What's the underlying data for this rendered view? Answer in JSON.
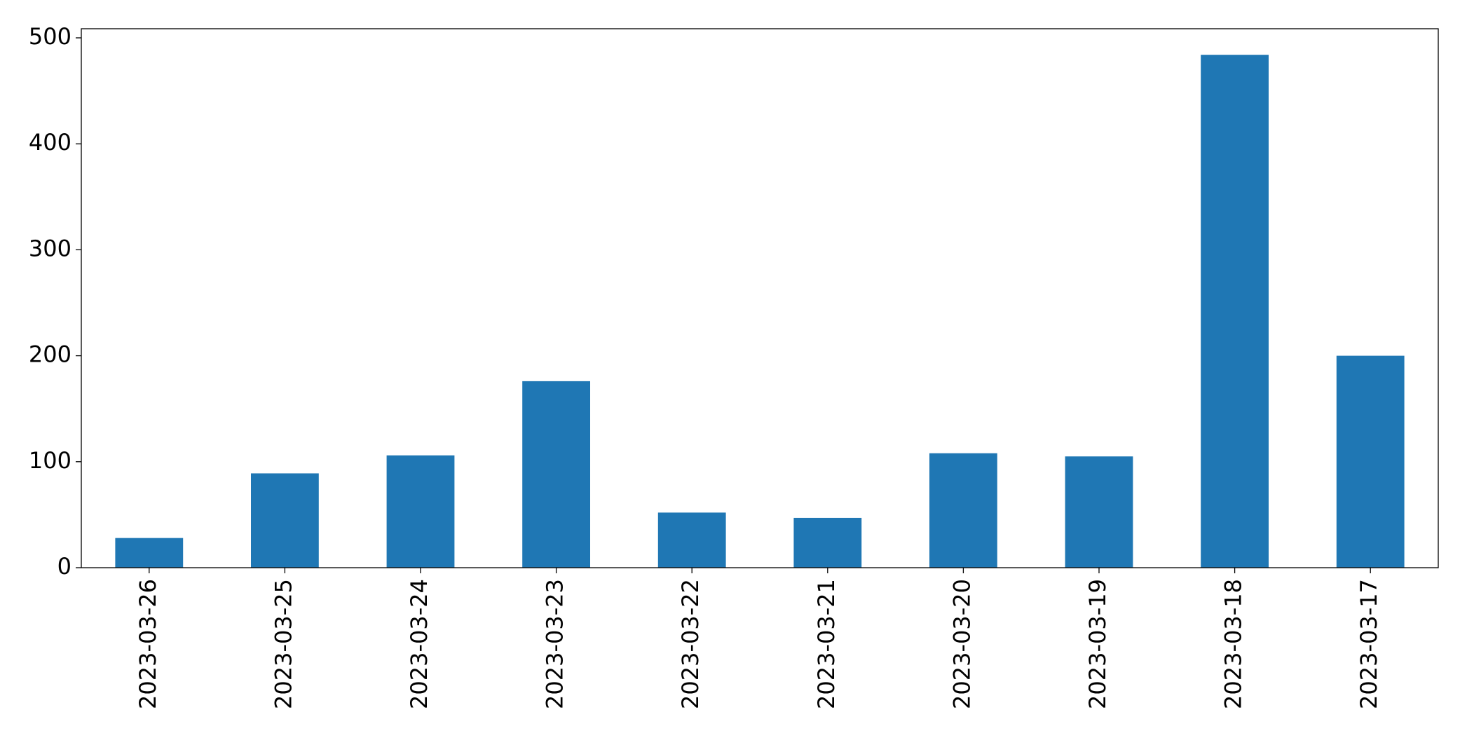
{
  "chart_data": {
    "type": "bar",
    "categories": [
      "2023-03-26",
      "2023-03-25",
      "2023-03-24",
      "2023-03-23",
      "2023-03-22",
      "2023-03-21",
      "2023-03-20",
      "2023-03-19",
      "2023-03-18",
      "2023-03-17"
    ],
    "values": [
      28,
      89,
      106,
      176,
      52,
      47,
      108,
      105,
      484,
      200
    ],
    "color": "#1f77b4",
    "ylim": [
      0,
      508.6
    ],
    "yticks": [
      0,
      100,
      200,
      300,
      400,
      500
    ],
    "grid": false
  }
}
